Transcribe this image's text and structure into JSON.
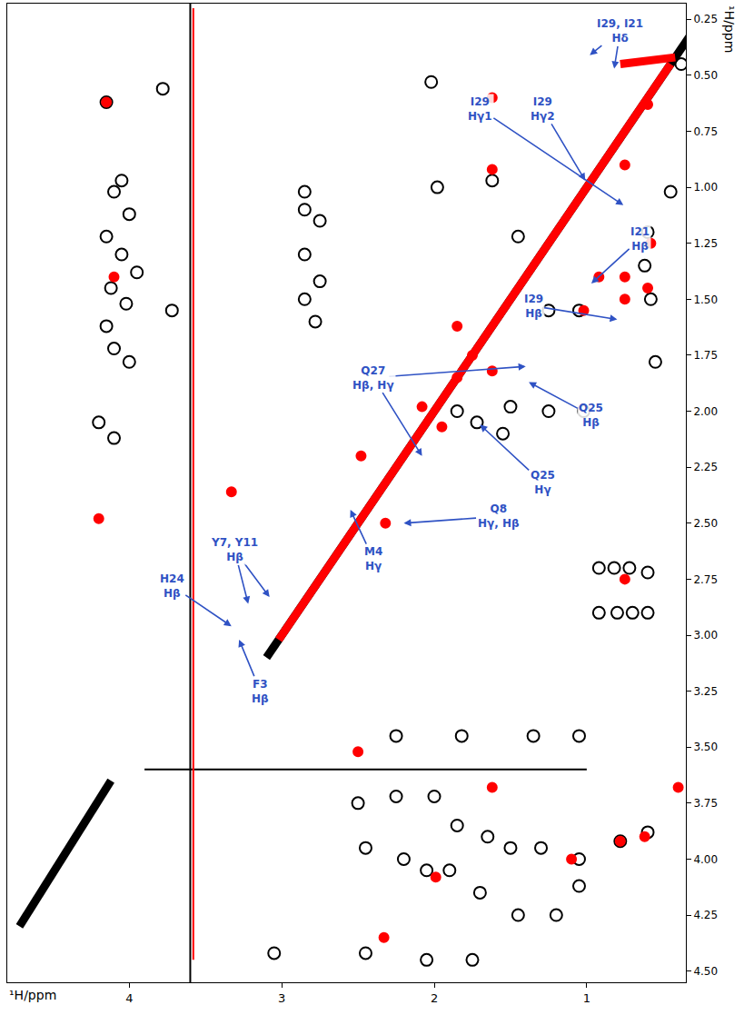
{
  "chart_data": {
    "type": "scatter",
    "x_label": "¹H/ppm",
    "y_label": "¹H/ppm",
    "xlim": [
      4.8,
      0.35
    ],
    "ylim": [
      4.55,
      0.18
    ],
    "xticks": [
      4,
      3,
      2,
      1
    ],
    "yticks": [
      0.25,
      {
        "value": 0.5,
        "label": "0.50"
      },
      0.75,
      {
        "value": 1,
        "label": "1.00"
      },
      1.25,
      {
        "value": 1.5,
        "label": "1.50"
      },
      1.75,
      {
        "value": 2,
        "label": "2.00"
      },
      2.25,
      {
        "value": 2.5,
        "label": "2.50"
      },
      2.75,
      {
        "value": 3,
        "label": "3.00"
      },
      3.25,
      {
        "value": 3.5,
        "label": "3.50"
      },
      3.75,
      {
        "value": 4,
        "label": "4.00"
      },
      4.25,
      {
        "value": 4.5,
        "label": "4.50"
      }
    ],
    "grid": false,
    "series": [
      {
        "type": "line",
        "color": "#000000",
        "line_style": "thick",
        "x": [
          3.1,
          0.3
        ],
        "y": [
          3.1,
          0.3
        ]
      },
      {
        "type": "line",
        "color": "#000000",
        "line_style": "thin",
        "x": [
          3.6,
          3.6
        ],
        "y": [
          0.18,
          4.55
        ]
      },
      {
        "type": "line",
        "color": "#000000",
        "line_style": "thin",
        "x": [
          3.9,
          1.0
        ],
        "y": [
          3.6,
          3.6
        ]
      },
      {
        "type": "line",
        "color": "#000000",
        "line_style": "thick",
        "x": [
          4.72,
          4.12
        ],
        "y": [
          4.3,
          3.65
        ]
      },
      {
        "type": "scatter",
        "color": "#000000",
        "marker": "circle-open",
        "x": [
          4.15,
          3.78,
          4.05,
          4.1,
          4.0,
          4.15,
          4.05,
          3.95,
          4.12,
          4.02,
          4.15,
          4.1,
          4.0,
          4.2,
          4.1,
          3.72,
          2.85,
          2.85,
          2.75,
          2.85,
          2.75,
          2.85,
          2.78,
          2.02,
          1.98,
          1.62,
          1.45,
          1.25,
          1.05,
          0.6,
          0.62,
          0.58,
          0.55,
          0.45,
          1.85,
          1.72,
          1.55,
          1.5,
          1.25,
          1.02,
          0.92,
          0.82,
          0.72,
          0.6,
          0.92,
          0.8,
          0.7,
          0.6,
          2.25,
          1.82,
          1.35,
          1.05,
          2.5,
          2.25,
          2.0,
          1.85,
          1.65,
          1.5,
          1.3,
          1.05,
          2.45,
          2.2,
          2.05,
          1.9,
          1.7,
          1.45,
          1.2,
          1.05,
          0.78,
          0.6,
          3.05,
          2.45,
          2.05,
          1.75,
          0.38
        ],
        "y": [
          0.62,
          0.56,
          0.97,
          1.02,
          1.12,
          1.22,
          1.3,
          1.38,
          1.45,
          1.52,
          1.62,
          1.72,
          1.78,
          2.05,
          2.12,
          1.55,
          1.02,
          1.1,
          1.15,
          1.3,
          1.42,
          1.5,
          1.6,
          0.53,
          1.0,
          0.97,
          1.22,
          1.55,
          1.55,
          1.2,
          1.35,
          1.5,
          1.78,
          1.02,
          2.0,
          2.05,
          2.1,
          1.98,
          2.0,
          2.0,
          2.7,
          2.7,
          2.7,
          2.72,
          2.9,
          2.9,
          2.9,
          2.9,
          3.45,
          3.45,
          3.45,
          3.45,
          3.75,
          3.72,
          3.72,
          3.85,
          3.9,
          3.95,
          3.95,
          4.0,
          3.95,
          4.0,
          4.05,
          4.05,
          4.15,
          4.25,
          4.25,
          4.12,
          3.92,
          3.88,
          4.42,
          4.42,
          4.45,
          4.45,
          0.45
        ]
      },
      {
        "type": "line",
        "color": "#ff0000",
        "line_style": "thick",
        "x": [
          3.02,
          0.45
        ],
        "y": [
          3.02,
          0.45
        ]
      },
      {
        "type": "line",
        "color": "#ff0000",
        "line_style": "thin",
        "x": [
          3.58,
          3.58
        ],
        "y": [
          0.2,
          4.45
        ]
      },
      {
        "type": "line",
        "color": "#ff0000",
        "line_style": "thick",
        "x": [
          0.78,
          0.42
        ],
        "y": [
          0.45,
          0.42
        ]
      },
      {
        "type": "scatter",
        "color": "#ff0000",
        "marker": "circle",
        "x": [
          4.15,
          4.1,
          1.62,
          1.62,
          0.6,
          0.58,
          0.6,
          0.75,
          0.75,
          0.75,
          1.02,
          0.92,
          1.85,
          1.75,
          1.85,
          1.62,
          2.08,
          1.95,
          2.48,
          3.33,
          0.75,
          2.32,
          0.78,
          0.62,
          1.62,
          1.99,
          1.1,
          2.33,
          0.4,
          4.2,
          2.5
        ],
        "y": [
          0.62,
          1.4,
          0.6,
          0.92,
          0.63,
          1.25,
          1.45,
          0.9,
          1.4,
          1.5,
          1.55,
          1.4,
          1.62,
          1.75,
          1.85,
          1.82,
          1.98,
          2.07,
          2.2,
          2.36,
          2.75,
          2.5,
          3.92,
          3.9,
          3.68,
          4.08,
          4.0,
          4.35,
          3.68,
          2.48,
          3.52
        ]
      }
    ],
    "annotations": [
      {
        "lines": [
          "I29, I21",
          "Hδ"
        ],
        "color": "#2f52c4",
        "label_x": 0.78,
        "label_y": 0.3,
        "targets": [
          [
            0.98,
            0.41
          ],
          [
            0.82,
            0.47
          ]
        ]
      },
      {
        "lines": [
          "I29",
          "Hγ1"
        ],
        "color": "#2f52c4",
        "label_x": 1.7,
        "label_y": 0.65,
        "targets": [
          [
            0.76,
            1.08
          ]
        ]
      },
      {
        "lines": [
          "I29",
          "Hγ2"
        ],
        "color": "#2f52c4",
        "label_x": 1.29,
        "label_y": 0.65,
        "targets": [
          [
            1.01,
            0.97
          ]
        ]
      },
      {
        "lines": [
          "I21",
          "Hβ"
        ],
        "color": "#2f52c4",
        "label_x": 0.65,
        "label_y": 1.23,
        "targets": [
          [
            0.97,
            1.43
          ]
        ]
      },
      {
        "lines": [
          "I29",
          "Hβ"
        ],
        "color": "#2f52c4",
        "label_x": 1.35,
        "label_y": 1.53,
        "targets": [
          [
            0.8,
            1.59
          ]
        ]
      },
      {
        "lines": [
          "Q27",
          "Hβ, Hγ"
        ],
        "color": "#2f52c4",
        "label_x": 2.4,
        "label_y": 1.85,
        "targets": [
          [
            2.08,
            2.2
          ],
          [
            1.4,
            1.8
          ]
        ]
      },
      {
        "lines": [
          "Q25",
          "Hβ"
        ],
        "color": "#2f52c4",
        "label_x": 0.97,
        "label_y": 2.02,
        "targets": [
          [
            1.38,
            1.87
          ]
        ]
      },
      {
        "lines": [
          "Q25",
          "Hγ"
        ],
        "color": "#2f52c4",
        "label_x": 1.29,
        "label_y": 2.32,
        "targets": [
          [
            1.7,
            2.06
          ]
        ]
      },
      {
        "lines": [
          "Q8",
          "Hγ, Hβ"
        ],
        "color": "#2f52c4",
        "label_x": 1.58,
        "label_y": 2.47,
        "targets": [
          [
            2.2,
            2.5
          ]
        ]
      },
      {
        "lines": [
          "M4",
          "Hγ"
        ],
        "color": "#2f52c4",
        "label_x": 2.4,
        "label_y": 2.66,
        "targets": [
          [
            2.55,
            2.44
          ]
        ]
      },
      {
        "lines": [
          "Y7, Y11",
          "Hβ"
        ],
        "color": "#2f52c4",
        "label_x": 3.31,
        "label_y": 2.62,
        "targets": [
          [
            3.22,
            2.86
          ],
          [
            3.08,
            2.83
          ]
        ]
      },
      {
        "lines": [
          "H24",
          "Hβ"
        ],
        "color": "#2f52c4",
        "label_x": 3.72,
        "label_y": 2.78,
        "targets": [
          [
            3.33,
            2.96
          ]
        ]
      },
      {
        "lines": [
          "F3",
          "Hβ"
        ],
        "color": "#2f52c4",
        "label_x": 3.14,
        "label_y": 3.25,
        "targets": [
          [
            3.28,
            3.02
          ]
        ]
      }
    ]
  }
}
